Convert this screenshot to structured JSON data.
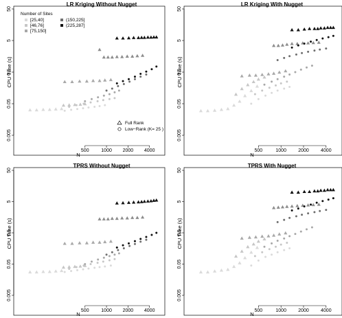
{
  "colors": {
    "g1": "#dadada",
    "g2": "#c6c6c6",
    "g3": "#a8a8a8",
    "g4": "#8c8c8c",
    "g5": "#6e6e6e",
    "g6": "#111111"
  },
  "legend": {
    "title": "Number of Sites",
    "groups": [
      {
        "label": "[25,40]",
        "color": "#dadada"
      },
      {
        "label": "[46,76]",
        "color": "#c6c6c6"
      },
      {
        "label": "[75,150]",
        "color": "#a8a8a8"
      },
      {
        "label": "(150,225]",
        "color": "#6e6e6e"
      },
      {
        "label": "(225,287]",
        "color": "#111111"
      }
    ],
    "shapes": [
      {
        "label": "Full Rank",
        "shape": "triangle"
      },
      {
        "label": "Low−Rank (K= 25 )",
        "shape": "circle"
      }
    ]
  },
  "chart_data": [
    {
      "type": "scatter",
      "title": "LR Kriging Without Nugget",
      "xlabel": "N",
      "ylabel": "CPU Time (s)",
      "xscale": "log",
      "yscale": "log",
      "xlim": [
        60,
        6000
      ],
      "ylim": [
        0.005,
        50
      ],
      "xticks": [
        500,
        1000,
        2000,
        4000
      ],
      "xtick_labels": [
        "500",
        "1000",
        "2000",
        "4000"
      ],
      "yticks": [
        0.005,
        0.05,
        0.5,
        5,
        50
      ],
      "ytick_labels": [
        "0.005",
        "0.05",
        "0.5",
        "5",
        "50"
      ],
      "grid": false,
      "legend_position": "top-left",
      "full_rank": [
        {
          "color": "#dadada",
          "x": [
            85,
            105,
            130,
            160,
            195,
            235
          ],
          "y": [
            0.032,
            0.032,
            0.033,
            0.033,
            0.034,
            0.035
          ]
        },
        {
          "color": "#c6c6c6",
          "x": [
            250,
            300,
            360,
            430,
            500
          ],
          "y": [
            0.045,
            0.046,
            0.047,
            0.048,
            0.05
          ]
        },
        {
          "color": "#a8a8a8",
          "x": [
            260,
            330,
            420,
            530,
            650,
            800,
            950,
            1150
          ],
          "y": [
            0.25,
            0.25,
            0.26,
            0.26,
            0.27,
            0.27,
            0.28,
            0.29
          ]
        },
        {
          "color": "#8c8c8c",
          "x": [
            800,
            920,
            1050,
            1200,
            1400,
            1650,
            1950,
            2300,
            2700,
            3200
          ],
          "y": [
            2.6,
            1.5,
            1.5,
            1.5,
            1.55,
            1.55,
            1.6,
            1.6,
            1.65,
            1.7
          ]
        },
        {
          "color": "#111111",
          "x": [
            1400,
            1700,
            2050,
            2400,
            2800,
            3100,
            3400,
            3800,
            4200,
            4600,
            5000
          ],
          "y": [
            6.0,
            6.0,
            6.1,
            6.2,
            6.2,
            6.3,
            6.3,
            6.4,
            6.4,
            6.5,
            6.5
          ]
        }
      ],
      "low_rank": [
        {
          "color": "#dadada",
          "x": [
            260,
            320,
            390,
            470,
            560,
            680,
            800,
            950
          ],
          "y": [
            0.03,
            0.032,
            0.034,
            0.036,
            0.038,
            0.04,
            0.042,
            0.045
          ]
        },
        {
          "color": "#c6c6c6",
          "x": [
            300,
            380,
            480,
            600,
            750,
            900,
            1100,
            1300
          ],
          "y": [
            0.04,
            0.045,
            0.05,
            0.055,
            0.06,
            0.065,
            0.07,
            0.075
          ]
        },
        {
          "color": "#a8a8a8",
          "x": [
            500,
            620,
            760,
            920,
            1100,
            1300,
            1500
          ],
          "y": [
            0.06,
            0.07,
            0.08,
            0.09,
            0.1,
            0.115,
            0.13
          ]
        },
        {
          "color": "#6e6e6e",
          "x": [
            1000,
            1200,
            1450,
            1750,
            2100,
            2500,
            3000,
            3600
          ],
          "y": [
            0.13,
            0.15,
            0.18,
            0.21,
            0.25,
            0.3,
            0.36,
            0.42
          ]
        },
        {
          "color": "#111111",
          "x": [
            1400,
            1700,
            2050,
            2500,
            3000,
            3600,
            4300,
            5000
          ],
          "y": [
            0.22,
            0.26,
            0.3,
            0.36,
            0.44,
            0.52,
            0.62,
            0.75
          ]
        }
      ]
    },
    {
      "type": "scatter",
      "title": "LR Kriging With Nugget",
      "xlabel": "N",
      "ylabel": "CPU Time (s)",
      "xscale": "log",
      "yscale": "log",
      "xlim": [
        60,
        6000
      ],
      "ylim": [
        0.005,
        50
      ],
      "xticks": [
        500,
        1000,
        2000,
        4000
      ],
      "xtick_labels": [
        "500",
        "1000",
        "2000",
        "4000"
      ],
      "yticks": [
        0.005,
        0.05,
        0.5,
        5,
        50
      ],
      "ytick_labels": [
        "0.005",
        "0.05",
        "0.5",
        "5",
        "50"
      ],
      "grid": false,
      "full_rank": [
        {
          "color": "#dadada",
          "x": [
            85,
            105,
            130,
            160,
            195,
            235,
            280,
            330,
            400,
            480
          ],
          "y": [
            0.03,
            0.03,
            0.031,
            0.033,
            0.035,
            0.045,
            0.06,
            0.09,
            0.13,
            0.18
          ]
        },
        {
          "color": "#c6c6c6",
          "x": [
            250,
            300,
            360,
            430,
            500,
            600
          ],
          "y": [
            0.1,
            0.15,
            0.2,
            0.25,
            0.3,
            0.35
          ]
        },
        {
          "color": "#a8a8a8",
          "x": [
            300,
            380,
            460,
            560,
            680,
            800,
            950,
            1150
          ],
          "y": [
            0.38,
            0.4,
            0.4,
            0.42,
            0.44,
            0.46,
            0.5,
            0.55
          ]
        },
        {
          "color": "#8c8c8c",
          "x": [
            800,
            920,
            1050,
            1200,
            1400,
            1650,
            1950,
            2300,
            2700,
            3200
          ],
          "y": [
            3.5,
            3.5,
            3.6,
            3.8,
            4.0,
            4.0,
            4.2,
            4.2,
            4.3,
            4.4
          ]
        },
        {
          "color": "#111111",
          "x": [
            1400,
            1700,
            2050,
            2400,
            2800,
            3100,
            3400,
            3800,
            4200,
            4600,
            5000
          ],
          "y": [
            11,
            11,
            11.5,
            12,
            12,
            12,
            12.5,
            12.5,
            13,
            13,
            13
          ]
        }
      ],
      "low_rank": [
        {
          "color": "#dadada",
          "x": [
            400,
            500,
            620,
            750,
            900,
            1100,
            1300
          ],
          "y": [
            0.05,
            0.07,
            0.09,
            0.11,
            0.13,
            0.15,
            0.17
          ]
        },
        {
          "color": "#c6c6c6",
          "x": [
            450,
            560,
            700,
            850,
            1000,
            1200
          ],
          "y": [
            0.1,
            0.13,
            0.16,
            0.19,
            0.22,
            0.25
          ]
        },
        {
          "color": "#a8a8a8",
          "x": [
            600,
            750,
            900,
            1100,
            1300,
            1550,
            1850,
            2200,
            2600
          ],
          "y": [
            0.2,
            0.25,
            0.3,
            0.36,
            0.42,
            0.5,
            0.6,
            0.7,
            0.8
          ]
        },
        {
          "color": "#6e6e6e",
          "x": [
            900,
            1100,
            1300,
            1600,
            1900,
            2300,
            2800,
            3300,
            4000
          ],
          "y": [
            1.2,
            1.4,
            1.6,
            1.8,
            2.0,
            2.2,
            2.4,
            2.6,
            2.8
          ]
        },
        {
          "color": "#111111",
          "x": [
            1400,
            1700,
            2050,
            2500,
            3000,
            3600,
            4300,
            5000
          ],
          "y": [
            3.0,
            3.5,
            4.0,
            4.6,
            5.2,
            5.8,
            6.4,
            7.0
          ]
        }
      ]
    },
    {
      "type": "scatter",
      "title": "TPRS Without Nugget",
      "xlabel": "N",
      "ylabel": "CPU Time (s)",
      "xscale": "log",
      "yscale": "log",
      "xlim": [
        60,
        6000
      ],
      "ylim": [
        0.005,
        50
      ],
      "xticks": [
        500,
        1000,
        2000,
        4000
      ],
      "xtick_labels": [
        "500",
        "1000",
        "2000",
        "4000"
      ],
      "yticks": [
        0.005,
        0.05,
        0.5,
        5,
        50
      ],
      "ytick_labels": [
        "0.005",
        "0.05",
        "0.5",
        "5",
        "50"
      ],
      "grid": false,
      "full_rank": [
        {
          "color": "#dadada",
          "x": [
            85,
            105,
            130,
            160,
            195,
            235
          ],
          "y": [
            0.028,
            0.028,
            0.029,
            0.029,
            0.03,
            0.031
          ]
        },
        {
          "color": "#c6c6c6",
          "x": [
            250,
            300,
            360,
            430,
            500
          ],
          "y": [
            0.04,
            0.041,
            0.042,
            0.043,
            0.045
          ]
        },
        {
          "color": "#a8a8a8",
          "x": [
            260,
            330,
            420,
            530,
            650,
            800,
            950,
            1150
          ],
          "y": [
            0.23,
            0.23,
            0.24,
            0.24,
            0.25,
            0.25,
            0.26,
            0.27
          ]
        },
        {
          "color": "#8c8c8c",
          "x": [
            800,
            920,
            1050,
            1200,
            1400,
            1650,
            1950,
            2300,
            2700,
            3200
          ],
          "y": [
            1.4,
            1.4,
            1.4,
            1.45,
            1.45,
            1.5,
            1.5,
            1.55,
            1.55,
            1.6
          ]
        },
        {
          "color": "#111111",
          "x": [
            1400,
            1700,
            2050,
            2400,
            2800,
            3100,
            3400,
            3800,
            4200,
            4600,
            5000
          ],
          "y": [
            4.5,
            4.6,
            4.7,
            4.8,
            4.9,
            5.0,
            5.1,
            5.2,
            5.3,
            5.5,
            5.6
          ]
        }
      ],
      "low_rank": [
        {
          "color": "#dadada",
          "x": [
            260,
            320,
            390,
            470,
            560,
            680,
            800,
            950,
            1150
          ],
          "y": [
            0.028,
            0.03,
            0.032,
            0.034,
            0.036,
            0.038,
            0.04,
            0.042,
            0.045
          ]
        },
        {
          "color": "#c6c6c6",
          "x": [
            300,
            380,
            480,
            600,
            750,
            900,
            1100,
            1300
          ],
          "y": [
            0.035,
            0.04,
            0.045,
            0.05,
            0.055,
            0.06,
            0.066,
            0.072
          ]
        },
        {
          "color": "#a8a8a8",
          "x": [
            500,
            620,
            760,
            920,
            1100,
            1300,
            1500
          ],
          "y": [
            0.05,
            0.06,
            0.07,
            0.08,
            0.09,
            0.1,
            0.11
          ]
        },
        {
          "color": "#6e6e6e",
          "x": [
            1000,
            1200,
            1450,
            1750,
            2100,
            2500,
            3000,
            3600
          ],
          "y": [
            0.1,
            0.12,
            0.14,
            0.16,
            0.19,
            0.22,
            0.26,
            0.3
          ]
        },
        {
          "color": "#111111",
          "x": [
            1400,
            1700,
            2050,
            2500,
            3000,
            3600,
            4300,
            5000
          ],
          "y": [
            0.17,
            0.2,
            0.23,
            0.27,
            0.32,
            0.37,
            0.43,
            0.5
          ]
        }
      ]
    },
    {
      "type": "scatter",
      "title": "TPRS With Nugget",
      "xlabel": "N",
      "ylabel": "CPU Time (s)",
      "xscale": "log",
      "yscale": "log",
      "xlim": [
        60,
        6000
      ],
      "ylim": [
        0.005,
        50
      ],
      "xticks": [
        500,
        1000,
        2000,
        4000
      ],
      "xtick_labels": [
        "500",
        "1000",
        "2000",
        "4000"
      ],
      "yticks": [
        0.005,
        0.05,
        0.5,
        5,
        50
      ],
      "ytick_labels": [
        "0.005",
        "0.05",
        "0.5",
        "5",
        "50"
      ],
      "grid": false,
      "full_rank": [
        {
          "color": "#dadada",
          "x": [
            85,
            105,
            130,
            160,
            195,
            235,
            280,
            330,
            400,
            480
          ],
          "y": [
            0.028,
            0.028,
            0.03,
            0.032,
            0.034,
            0.042,
            0.055,
            0.08,
            0.12,
            0.17
          ]
        },
        {
          "color": "#c6c6c6",
          "x": [
            250,
            300,
            360,
            430,
            500,
            600
          ],
          "y": [
            0.09,
            0.13,
            0.18,
            0.22,
            0.27,
            0.32
          ]
        },
        {
          "color": "#a8a8a8",
          "x": [
            300,
            380,
            460,
            560,
            680,
            800,
            950,
            1150
          ],
          "y": [
            0.34,
            0.36,
            0.37,
            0.39,
            0.4,
            0.42,
            0.46,
            0.5
          ]
        },
        {
          "color": "#8c8c8c",
          "x": [
            800,
            920,
            1050,
            1200,
            1400,
            1650,
            1950,
            2300,
            2700,
            3200
          ],
          "y": [
            3.2,
            3.3,
            3.4,
            3.5,
            3.6,
            3.7,
            3.8,
            3.9,
            4.0,
            4.1
          ]
        },
        {
          "color": "#111111",
          "x": [
            1400,
            1700,
            2050,
            2400,
            2800,
            3100,
            3400,
            3800,
            4200,
            4600,
            5000
          ],
          "y": [
            10,
            10,
            10.5,
            10.5,
            11,
            11,
            11.5,
            11.5,
            12,
            12,
            12
          ]
        }
      ],
      "low_rank": [
        {
          "color": "#dadada",
          "x": [
            400,
            500,
            620,
            750,
            900,
            1100,
            1300
          ],
          "y": [
            0.045,
            0.065,
            0.085,
            0.1,
            0.12,
            0.14,
            0.16
          ]
        },
        {
          "color": "#c6c6c6",
          "x": [
            450,
            560,
            700,
            850,
            1000,
            1200
          ],
          "y": [
            0.09,
            0.12,
            0.15,
            0.18,
            0.21,
            0.24
          ]
        },
        {
          "color": "#a8a8a8",
          "x": [
            600,
            750,
            900,
            1100,
            1300,
            1550,
            1850,
            2200,
            2600
          ],
          "y": [
            0.18,
            0.23,
            0.28,
            0.33,
            0.39,
            0.46,
            0.55,
            0.65,
            0.75
          ]
        },
        {
          "color": "#6e6e6e",
          "x": [
            900,
            1100,
            1300,
            1600,
            1900,
            2300,
            2800,
            3300,
            4000
          ],
          "y": [
            1.1,
            1.3,
            1.5,
            1.7,
            1.9,
            2.1,
            2.3,
            2.5,
            2.7
          ]
        },
        {
          "color": "#111111",
          "x": [
            1400,
            1700,
            2050,
            2500,
            3000,
            3600,
            4300,
            5000
          ],
          "y": [
            2.6,
            3.0,
            3.5,
            4.0,
            4.6,
            5.2,
            5.8,
            6.4
          ]
        }
      ]
    }
  ]
}
